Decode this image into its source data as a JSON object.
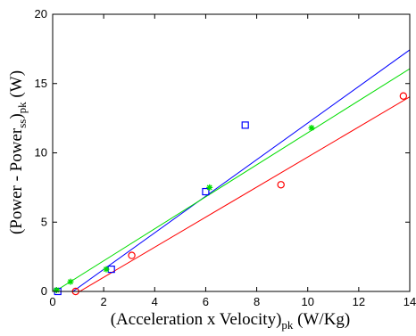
{
  "chart_data": {
    "type": "scatter",
    "title": "",
    "xlabel": {
      "main": "(Acceleration x Velocity)",
      "sub": "pk",
      "unit": " (W/Kg)"
    },
    "ylabel": {
      "pre": "(Power - Power",
      "sub_ss": "ss",
      "mid": ")",
      "sub_pk": "pk",
      "unit": " (W)"
    },
    "xlim": [
      0,
      14
    ],
    "ylim": [
      0,
      20
    ],
    "xticks": [
      0,
      2,
      4,
      6,
      8,
      10,
      12,
      14
    ],
    "yticks": [
      0,
      5,
      10,
      15,
      20
    ],
    "grid": false,
    "legend": "none",
    "series": [
      {
        "marker": "square",
        "color": "#0000ff",
        "points": [
          [
            0.2,
            0.0
          ],
          [
            2.3,
            1.6
          ],
          [
            6.0,
            7.2
          ],
          [
            7.55,
            12.0
          ]
        ],
        "fit": {
          "slope": 1.32,
          "intercept": -1.05
        }
      },
      {
        "marker": "star",
        "color": "#00dd00",
        "points": [
          [
            0.15,
            0.1
          ],
          [
            0.7,
            0.7
          ],
          [
            2.1,
            1.6
          ],
          [
            6.15,
            7.5
          ],
          [
            10.15,
            11.8
          ]
        ],
        "fit": {
          "slope": 1.155,
          "intercept": -0.1
        }
      },
      {
        "marker": "circle",
        "color": "#ff0000",
        "points": [
          [
            0.9,
            0.0
          ],
          [
            3.1,
            2.6
          ],
          [
            8.95,
            7.7
          ],
          [
            13.75,
            14.1
          ]
        ],
        "fit": {
          "slope": 1.085,
          "intercept": -1.15
        }
      }
    ]
  }
}
